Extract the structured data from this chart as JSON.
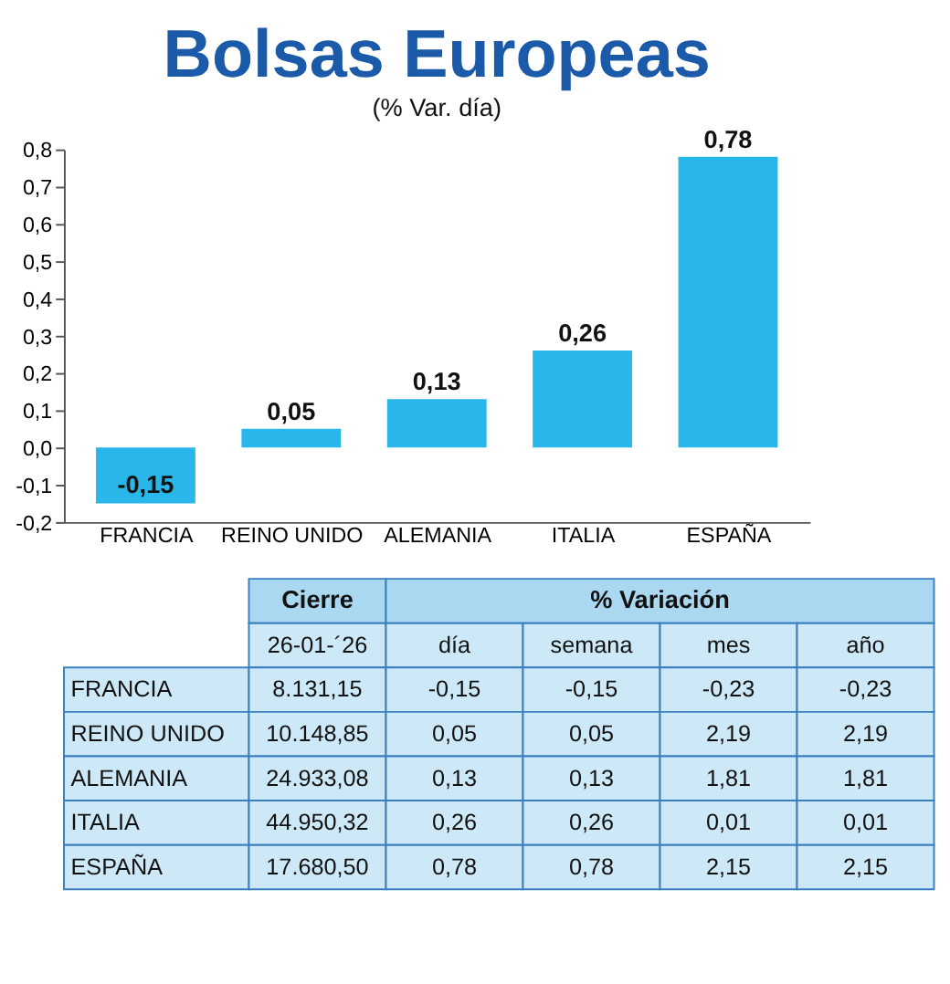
{
  "chart_data": [
    {
      "type": "bar",
      "title": "Bolsas Europeas",
      "subtitle": "(% Var. día)",
      "categories": [
        "FRANCIA",
        "REINO UNIDO",
        "ALEMANIA",
        "ITALIA",
        "ESPAÑA"
      ],
      "series": [
        {
          "color": "#29b6e8",
          "values": [
            -0.15,
            0.05,
            0.13,
            0.26,
            0.78
          ]
        }
      ],
      "value_labels": [
        "-0,15",
        "0,05",
        "0,13",
        "0,26",
        "0,78"
      ],
      "ylim": [
        -0.2,
        0.8
      ],
      "yticks": [
        {
          "value": -0.2,
          "label": "-0,2"
        },
        {
          "value": -0.1,
          "label": "-0,1"
        },
        {
          "value": 0,
          "label": "0,0"
        },
        {
          "value": 0.1,
          "label": "0,1"
        },
        {
          "value": 0.2,
          "label": "0,2"
        },
        {
          "value": 0.3,
          "label": "0,3"
        },
        {
          "value": 0.4,
          "label": "0,4"
        },
        {
          "value": 0.5,
          "label": "0,5"
        },
        {
          "value": 0.6,
          "label": "0,6"
        },
        {
          "value": 0.7,
          "label": "0,7"
        },
        {
          "value": 0.8,
          "label": "0,8"
        }
      ],
      "grid": false
    },
    {
      "type": "other",
      "annotations": [
        "Cierre",
        "% Variación"
      ],
      "categories": [
        "26-01-´26",
        "día",
        "semana",
        "mes",
        "año"
      ],
      "y_categories": [
        "FRANCIA",
        "REINO UNIDO",
        "ALEMANIA",
        "ITALIA",
        "ESPAÑA"
      ],
      "cell_labels": [
        [
          "8.131,15",
          "-0,15",
          "-0,15",
          "-0,23",
          "-0,23"
        ],
        [
          "10.148,85",
          "0,05",
          "0,05",
          "2,19",
          "2,19"
        ],
        [
          "24.933,08",
          "0,13",
          "0,13",
          "1,81",
          "1,81"
        ],
        [
          "44.950,32",
          "0,26",
          "0,26",
          "0,01",
          "0,01"
        ],
        [
          "17.680,50",
          "0,78",
          "0,78",
          "2,15",
          "2,15"
        ]
      ]
    }
  ]
}
